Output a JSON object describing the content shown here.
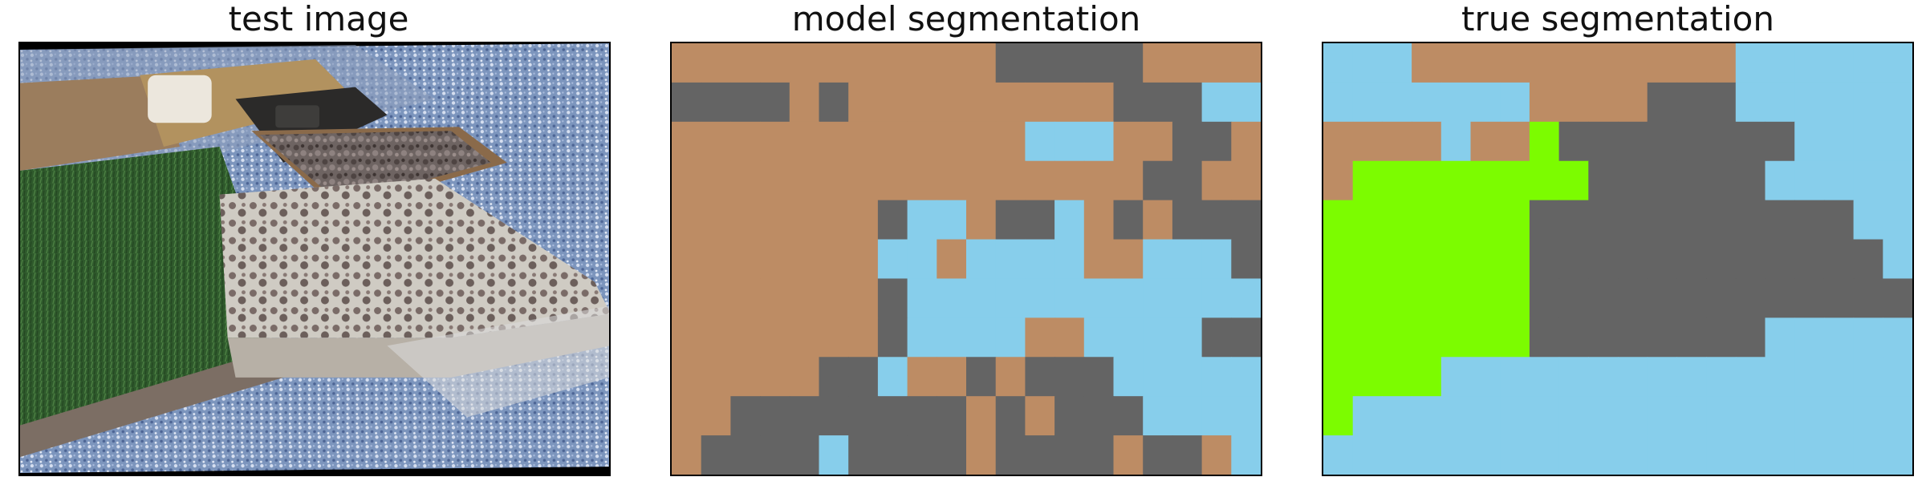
{
  "panels": [
    {
      "title": "test image"
    },
    {
      "title": "model segmentation"
    },
    {
      "title": "true segmentation"
    }
  ],
  "colors": {
    "brown": "#bd8c64",
    "gray": "#646464",
    "sky": "#87ceeb",
    "green": "#7cfc00"
  },
  "grid": {
    "rows": 11,
    "cols": 20
  },
  "model_segmentation": [
    "BBBBBBBBBBBGGGGGBBBB",
    "GGGGBGBBBBBBBBBGGGSS",
    "BBBBBBBBBBBBSSSBBGGB",
    "BBBBBBBBBBBBBBBBGGBB",
    "BBBBBBBGSSBGGSBGBGGG",
    "BBBBBBBSSBSSSSBBSSSG",
    "BBBBBBBGSSSSSSSSSSSS",
    "BBBBBBBGSSSSBBSSSSGG",
    "BBBBBGGSBBGBGGGSSSSS",
    "BBGGGGGGGGBGBGGGSSSS",
    "BGGGGSGGGGBGGGGBGGBS"
  ],
  "true_segmentation": [
    "SSSBBBBBBBBBBBSSSSSS",
    "SSSSSSSBBBBGGGSSSSSS",
    "BBBBSBBLGGGGGGGGSSSS",
    "BLLLLLLLLGGGGGGSSSSS",
    "LLLLLLLGGGGGGGGGGGSS",
    "LLLLLLLGGGGGGGGGGGGS",
    "LLLLLLLGGGGGGGGGGGGG",
    "LLLLLLLGGGGGGGGSSSSS",
    "LLLLSSSSSSSSSSSSSSSS",
    "LSSSSSSSSSSSSSSSSSSS",
    "SSSSSSSSSSSSSSSSSSSS"
  ]
}
